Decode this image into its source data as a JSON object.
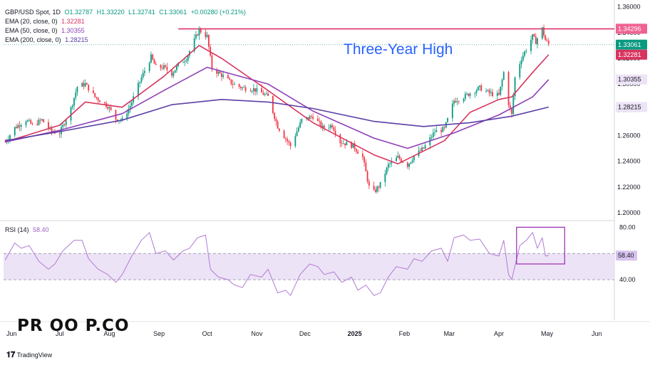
{
  "legend": {
    "symbol": "GBP/USD Spot, 1D",
    "ohlc": {
      "o": "O1.32787",
      "h": "H1.33220",
      "l": "L1.32741",
      "c": "C1.33061",
      "chg": "+0.00280 (+0.21%)"
    },
    "ema20": {
      "label": "EMA (20, close, 0)",
      "value": "1.32281"
    },
    "ema50": {
      "label": "EMA (50, close, 0)",
      "value": "1.30355"
    },
    "ema200": {
      "label": "EMA (200, close, 0)",
      "value": "1.28215"
    }
  },
  "rsi_legend": {
    "label": "RSI (14)",
    "value": "58.40"
  },
  "annotation": "Three-Year High",
  "brand": {
    "logo_text": "PR OO P.CO",
    "platform": "TradingView"
  },
  "colors": {
    "up": "#089981",
    "down": "#f23645",
    "ema20": "#d9345e",
    "ema50": "#8e3fb6",
    "ema200": "#5b3fa6",
    "rsi": "#b17ad6",
    "rsi_band": "#ede3f6",
    "resistance": "#e0336c",
    "annotation": "#2962ff"
  },
  "chart_data": [
    {
      "type": "candlestick",
      "title": "GBP/USD Spot, 1D",
      "x_ticks": [
        "Jun",
        "Jul",
        "Aug",
        "Sep",
        "Oct",
        "Nov",
        "Dec",
        "2025",
        "Feb",
        "Mar",
        "Apr",
        "May",
        "Jun"
      ],
      "y_ticks": [
        "1.20000",
        "1.22000",
        "1.24000",
        "1.26000",
        "1.28000",
        "1.30000",
        "1.32000",
        "1.34000",
        "1.36000"
      ],
      "ylim": [
        1.195,
        1.362
      ],
      "price_labels": [
        {
          "name": "High",
          "value": 1.34296,
          "text": "1.34296"
        },
        {
          "name": "Close",
          "value": 1.33061,
          "text": "1.33061"
        },
        {
          "name": "EMA 20",
          "value": 1.32281,
          "text": "1.32281"
        },
        {
          "name": "EMA 50",
          "value": 1.30355,
          "text": "1.30355"
        },
        {
          "name": "EMA 200",
          "value": 1.28215,
          "text": "1.28215"
        }
      ],
      "resistance": 1.3429,
      "close_trend": [
        [
          "2024-05-28",
          1.255
        ],
        [
          "2024-06-03",
          1.266
        ],
        [
          "2024-06-10",
          1.272
        ],
        [
          "2024-06-14",
          1.268
        ],
        [
          "2024-06-20",
          1.272
        ],
        [
          "2024-06-26",
          1.263
        ],
        [
          "2024-07-01",
          1.262
        ],
        [
          "2024-07-08",
          1.281
        ],
        [
          "2024-07-12",
          1.298
        ],
        [
          "2024-07-17",
          1.3
        ],
        [
          "2024-07-23",
          1.29
        ],
        [
          "2024-07-31",
          1.283
        ],
        [
          "2024-08-05",
          1.273
        ],
        [
          "2024-08-09",
          1.272
        ],
        [
          "2024-08-14",
          1.283
        ],
        [
          "2024-08-21",
          1.305
        ],
        [
          "2024-08-27",
          1.321
        ],
        [
          "2024-08-30",
          1.313
        ],
        [
          "2024-09-04",
          1.313
        ],
        [
          "2024-09-09",
          1.308
        ],
        [
          "2024-09-13",
          1.315
        ],
        [
          "2024-09-18",
          1.32
        ],
        [
          "2024-09-23",
          1.334
        ],
        [
          "2024-09-26",
          1.342
        ],
        [
          "2024-10-01",
          1.337
        ],
        [
          "2024-10-04",
          1.312
        ],
        [
          "2024-10-10",
          1.307
        ],
        [
          "2024-10-17",
          1.3
        ],
        [
          "2024-10-23",
          1.297
        ],
        [
          "2024-10-30",
          1.296
        ],
        [
          "2024-11-04",
          1.293
        ],
        [
          "2024-11-08",
          1.29
        ],
        [
          "2024-11-14",
          1.267
        ],
        [
          "2024-11-22",
          1.252
        ],
        [
          "2024-11-29",
          1.272
        ],
        [
          "2024-12-06",
          1.275
        ],
        [
          "2024-12-12",
          1.266
        ],
        [
          "2024-12-18",
          1.268
        ],
        [
          "2024-12-23",
          1.255
        ],
        [
          "2024-12-31",
          1.252
        ],
        [
          "2025-01-06",
          1.243
        ],
        [
          "2025-01-10",
          1.22
        ],
        [
          "2025-01-13",
          1.216
        ],
        [
          "2025-01-17",
          1.222
        ],
        [
          "2025-01-22",
          1.237
        ],
        [
          "2025-01-28",
          1.243
        ],
        [
          "2025-02-03",
          1.237
        ],
        [
          "2025-02-07",
          1.244
        ],
        [
          "2025-02-13",
          1.25
        ],
        [
          "2025-02-20",
          1.263
        ],
        [
          "2025-02-26",
          1.265
        ],
        [
          "2025-03-04",
          1.287
        ],
        [
          "2025-03-10",
          1.29
        ],
        [
          "2025-03-14",
          1.293
        ],
        [
          "2025-03-20",
          1.297
        ],
        [
          "2025-03-26",
          1.293
        ],
        [
          "2025-04-01",
          1.291
        ],
        [
          "2025-04-04",
          1.309
        ],
        [
          "2025-04-07",
          1.285
        ],
        [
          "2025-04-09",
          1.276
        ],
        [
          "2025-04-11",
          1.305
        ],
        [
          "2025-04-15",
          1.32
        ],
        [
          "2025-04-18",
          1.327
        ],
        [
          "2025-04-22",
          1.337
        ],
        [
          "2025-04-24",
          1.333
        ],
        [
          "2025-04-28",
          1.343
        ],
        [
          "2025-04-30",
          1.334
        ],
        [
          "2025-05-02",
          1.331
        ]
      ],
      "series": [
        {
          "name": "EMA (20, close, 0)",
          "points": [
            [
              "2024-05-28",
              1.255
            ],
            [
              "2024-07-01",
              1.268
            ],
            [
              "2024-07-17",
              1.286
            ],
            [
              "2024-08-09",
              1.282
            ],
            [
              "2024-09-04",
              1.306
            ],
            [
              "2024-09-26",
              1.33
            ],
            [
              "2024-10-10",
              1.32
            ],
            [
              "2024-11-08",
              1.295
            ],
            [
              "2024-12-06",
              1.27
            ],
            [
              "2025-01-13",
              1.245
            ],
            [
              "2025-01-28",
              1.238
            ],
            [
              "2025-02-26",
              1.256
            ],
            [
              "2025-03-14",
              1.278
            ],
            [
              "2025-04-01",
              1.288
            ],
            [
              "2025-04-09",
              1.29
            ],
            [
              "2025-04-22",
              1.309
            ],
            [
              "2025-05-02",
              1.3228
            ]
          ]
        },
        {
          "name": "EMA (50, close, 0)",
          "points": [
            [
              "2024-05-28",
              1.255
            ],
            [
              "2024-07-01",
              1.264
            ],
            [
              "2024-08-09",
              1.277
            ],
            [
              "2024-09-04",
              1.295
            ],
            [
              "2024-10-01",
              1.313
            ],
            [
              "2024-11-08",
              1.3
            ],
            [
              "2024-12-06",
              1.279
            ],
            [
              "2025-01-13",
              1.258
            ],
            [
              "2025-02-03",
              1.25
            ],
            [
              "2025-03-04",
              1.262
            ],
            [
              "2025-04-01",
              1.276
            ],
            [
              "2025-04-22",
              1.29
            ],
            [
              "2025-05-02",
              1.3035
            ]
          ]
        },
        {
          "name": "EMA (200, close, 0)",
          "points": [
            [
              "2024-05-28",
              1.256
            ],
            [
              "2024-07-01",
              1.263
            ],
            [
              "2024-08-09",
              1.272
            ],
            [
              "2024-09-09",
              1.284
            ],
            [
              "2024-10-10",
              1.288
            ],
            [
              "2024-11-08",
              1.286
            ],
            [
              "2024-12-06",
              1.281
            ],
            [
              "2025-01-13",
              1.271
            ],
            [
              "2025-02-13",
              1.267
            ],
            [
              "2025-03-14",
              1.27
            ],
            [
              "2025-04-09",
              1.275
            ],
            [
              "2025-05-02",
              1.2821
            ]
          ]
        }
      ]
    },
    {
      "type": "line",
      "title": "RSI (14)",
      "y_ticks": [
        "40.00",
        "80.00"
      ],
      "ylim": [
        20,
        84
      ],
      "band": [
        40,
        60
      ],
      "last_value": 58.4,
      "series": [
        {
          "name": "RSI (14)",
          "points": [
            [
              "2024-05-28",
              55
            ],
            [
              "2024-06-03",
              68
            ],
            [
              "2024-06-07",
              64
            ],
            [
              "2024-06-12",
              66
            ],
            [
              "2024-06-18",
              54
            ],
            [
              "2024-06-24",
              48
            ],
            [
              "2024-06-28",
              52
            ],
            [
              "2024-07-03",
              62
            ],
            [
              "2024-07-10",
              70
            ],
            [
              "2024-07-15",
              70
            ],
            [
              "2024-07-19",
              56
            ],
            [
              "2024-07-25",
              48
            ],
            [
              "2024-07-31",
              44
            ],
            [
              "2024-08-05",
              38
            ],
            [
              "2024-08-09",
              44
            ],
            [
              "2024-08-15",
              58
            ],
            [
              "2024-08-21",
              70
            ],
            [
              "2024-08-26",
              76
            ],
            [
              "2024-08-30",
              60
            ],
            [
              "2024-09-05",
              62
            ],
            [
              "2024-09-10",
              55
            ],
            [
              "2024-09-16",
              62
            ],
            [
              "2024-09-20",
              64
            ],
            [
              "2024-09-25",
              72
            ],
            [
              "2024-09-30",
              74
            ],
            [
              "2024-10-03",
              48
            ],
            [
              "2024-10-08",
              42
            ],
            [
              "2024-10-14",
              40
            ],
            [
              "2024-10-18",
              36
            ],
            [
              "2024-10-23",
              34
            ],
            [
              "2024-10-28",
              44
            ],
            [
              "2024-11-04",
              42
            ],
            [
              "2024-11-08",
              48
            ],
            [
              "2024-11-14",
              30
            ],
            [
              "2024-11-19",
              32
            ],
            [
              "2024-11-22",
              28
            ],
            [
              "2024-11-28",
              44
            ],
            [
              "2024-12-04",
              52
            ],
            [
              "2024-12-09",
              50
            ],
            [
              "2024-12-13",
              44
            ],
            [
              "2024-12-19",
              46
            ],
            [
              "2024-12-24",
              38
            ],
            [
              "2024-12-30",
              42
            ],
            [
              "2025-01-03",
              32
            ],
            [
              "2025-01-08",
              36
            ],
            [
              "2025-01-13",
              28
            ],
            [
              "2025-01-17",
              30
            ],
            [
              "2025-01-22",
              42
            ],
            [
              "2025-01-27",
              50
            ],
            [
              "2025-02-03",
              48
            ],
            [
              "2025-02-07",
              56
            ],
            [
              "2025-02-12",
              54
            ],
            [
              "2025-02-18",
              62
            ],
            [
              "2025-02-24",
              64
            ],
            [
              "2025-02-28",
              54
            ],
            [
              "2025-03-04",
              72
            ],
            [
              "2025-03-10",
              74
            ],
            [
              "2025-03-14",
              70
            ],
            [
              "2025-03-20",
              71
            ],
            [
              "2025-03-26",
              60
            ],
            [
              "2025-04-01",
              58
            ],
            [
              "2025-04-04",
              70
            ],
            [
              "2025-04-07",
              44
            ],
            [
              "2025-04-09",
              40
            ],
            [
              "2025-04-14",
              66
            ],
            [
              "2025-04-18",
              70
            ],
            [
              "2025-04-22",
              76
            ],
            [
              "2025-04-25",
              64
            ],
            [
              "2025-04-28",
              72
            ],
            [
              "2025-04-30",
              58
            ],
            [
              "2025-05-02",
              58.4
            ]
          ]
        }
      ]
    }
  ]
}
